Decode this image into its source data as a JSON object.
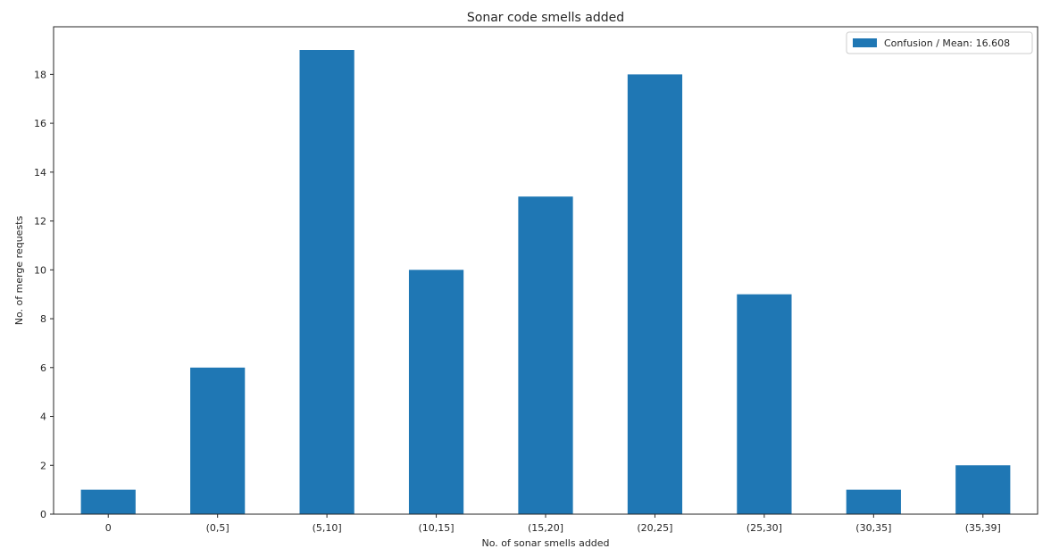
{
  "chart_data": {
    "type": "bar",
    "title": "Sonar code smells added",
    "xlabel": "No. of sonar smells added",
    "ylabel": "No. of merge requests",
    "categories": [
      "0",
      "(0,5]",
      "(5,10]",
      "(10,15]",
      "(15,20]",
      "(20,25]",
      "(25,30]",
      "(30,35]",
      "(35,39]"
    ],
    "series": [
      {
        "name": "Confusion / Mean: 16.608",
        "values": [
          1,
          6,
          19,
          10,
          13,
          18,
          9,
          1,
          2
        ],
        "color": "#1f77b4"
      }
    ],
    "ylim": [
      0,
      19.95
    ],
    "yticks": [
      0,
      2,
      4,
      6,
      8,
      10,
      12,
      14,
      16,
      18
    ],
    "grid": false,
    "legend_position": "top-right"
  }
}
